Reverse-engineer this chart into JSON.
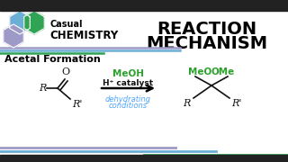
{
  "bg_color": "#ffffff",
  "top_bar_color": "#222222",
  "bottom_bar_color": "#222222",
  "title_text1": "REACTION",
  "title_text2": "MECHANISM",
  "logo_hex1_color": "#6baed6",
  "logo_hex2_color": "#31a354",
  "logo_hex3_color": "#9e9ac8",
  "casual_text": "Casual",
  "chemistry_text": "CHEMISTRY",
  "section_title": "Acetal Formation",
  "line1_color": "#9e9ac8",
  "line2_color": "#6baed6",
  "line3_color": "#31a354",
  "meoh_color": "#2ca02c",
  "catalyst_color": "#111111",
  "dehydrating_color": "#4da6ff",
  "mol_color": "#111111"
}
